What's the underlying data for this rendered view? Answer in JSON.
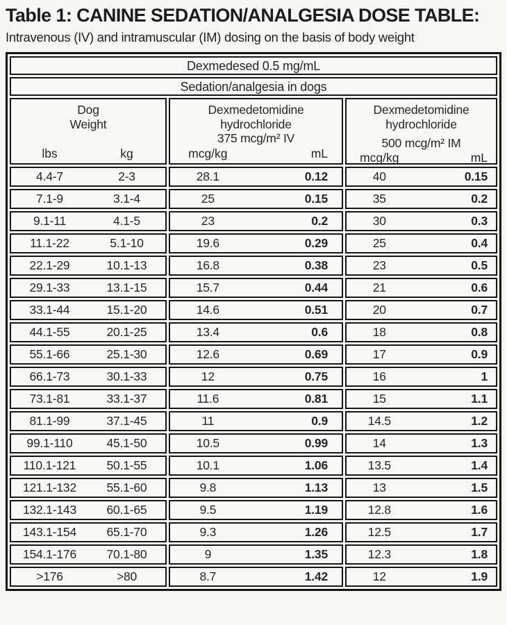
{
  "page": {
    "title": "Table 1: CANINE SEDATION/ANALGESIA DOSE TABLE:",
    "subtitle": "Intravenous (IV) and intramuscular (IM) dosing on the basis of body weight"
  },
  "table": {
    "product_header": "Dexmedesed 0.5 mg/mL",
    "indication_header": "Sedation/analgesia in dogs",
    "groups": [
      {
        "name": "dog-weight",
        "title_lines": [
          "Dog",
          "Weight"
        ],
        "sub_labels": [
          "lbs",
          "kg"
        ]
      },
      {
        "name": "dexmedetomidine-iv",
        "title_lines": [
          "Dexmedetomidine",
          "hydrochloride",
          "375 mcg/m² IV"
        ],
        "sub_labels": [
          "mcg/kg",
          "mL"
        ]
      },
      {
        "name": "dexmedetomidine-im",
        "title_lines": [
          "Dexmedetomidine",
          "hydrochloride",
          "500 mcg/m² IM"
        ],
        "sub_labels": [
          "mcg/kg",
          "mL"
        ]
      }
    ],
    "columns": [
      "lbs",
      "kg",
      "iv_mcg_per_kg",
      "iv_mL",
      "im_mcg_per_kg",
      "im_mL"
    ],
    "rows": [
      [
        "4.4-7",
        "2-3",
        "28.1",
        "0.12",
        "40",
        "0.15"
      ],
      [
        "7.1-9",
        "3.1-4",
        "25",
        "0.15",
        "35",
        "0.2"
      ],
      [
        "9.1-11",
        "4.1-5",
        "23",
        "0.2",
        "30",
        "0.3"
      ],
      [
        "11.1-22",
        "5.1-10",
        "19.6",
        "0.29",
        "25",
        "0.4"
      ],
      [
        "22.1-29",
        "10.1-13",
        "16.8",
        "0.38",
        "23",
        "0.5"
      ],
      [
        "29.1-33",
        "13.1-15",
        "15.7",
        "0.44",
        "21",
        "0.6"
      ],
      [
        "33.1-44",
        "15.1-20",
        "14.6",
        "0.51",
        "20",
        "0.7"
      ],
      [
        "44.1-55",
        "20.1-25",
        "13.4",
        "0.6",
        "18",
        "0.8"
      ],
      [
        "55.1-66",
        "25.1-30",
        "12.6",
        "0.69",
        "17",
        "0.9"
      ],
      [
        "66.1-73",
        "30.1-33",
        "12",
        "0.75",
        "16",
        "1"
      ],
      [
        "73.1-81",
        "33.1-37",
        "11.6",
        "0.81",
        "15",
        "1.1"
      ],
      [
        "81.1-99",
        "37.1-45",
        "11",
        "0.9",
        "14.5",
        "1.2"
      ],
      [
        "99.1-110",
        "45.1-50",
        "10.5",
        "0.99",
        "14",
        "1.3"
      ],
      [
        "110.1-121",
        "50.1-55",
        "10.1",
        "1.06",
        "13.5",
        "1.4"
      ],
      [
        "121.1-132",
        "55.1-60",
        "9.8",
        "1.13",
        "13",
        "1.5"
      ],
      [
        "132.1-143",
        "60.1-65",
        "9.5",
        "1.19",
        "12.8",
        "1.6"
      ],
      [
        "143.1-154",
        "65.1-70",
        "9.3",
        "1.26",
        "12.5",
        "1.7"
      ],
      [
        "154.1-176",
        "70.1-80",
        "9",
        "1.35",
        "12.3",
        "1.8"
      ],
      [
        ">176",
        ">80",
        "8.7",
        "1.42",
        "12",
        "1.9"
      ]
    ]
  }
}
